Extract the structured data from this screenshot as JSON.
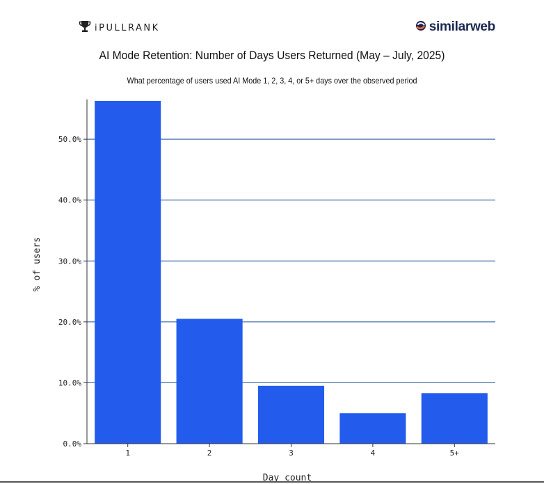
{
  "logos": {
    "left_text": "iPULLRANK",
    "right_text": "similarweb",
    "left_icon": "trophy-icon",
    "right_icon": "similarweb-s-icon",
    "right_icon_color": "#ff6b2c",
    "right_text_color": "#1b2653"
  },
  "chart_data": {
    "type": "bar",
    "title": "AI Mode Retention: Number of Days Users Returned (May – July, 2025)",
    "subtitle": "What percentage of users used AI Mode 1, 2, 3, 4, or 5+ days over the observed period",
    "xlabel": "Day count",
    "ylabel": "% of users",
    "categories": [
      "1",
      "2",
      "3",
      "4",
      "5+"
    ],
    "values": [
      56.3,
      20.5,
      9.5,
      5.0,
      8.3
    ],
    "ylim": [
      0,
      56.3
    ],
    "yticks": [
      "0.0%",
      "10.0%",
      "20.0%",
      "30.0%",
      "40.0%",
      "50.0%"
    ],
    "ytick_values": [
      0,
      10,
      20,
      30,
      40,
      50
    ],
    "grid": true,
    "bar_color": "#235ced",
    "grid_color": "#1f4f9a"
  }
}
